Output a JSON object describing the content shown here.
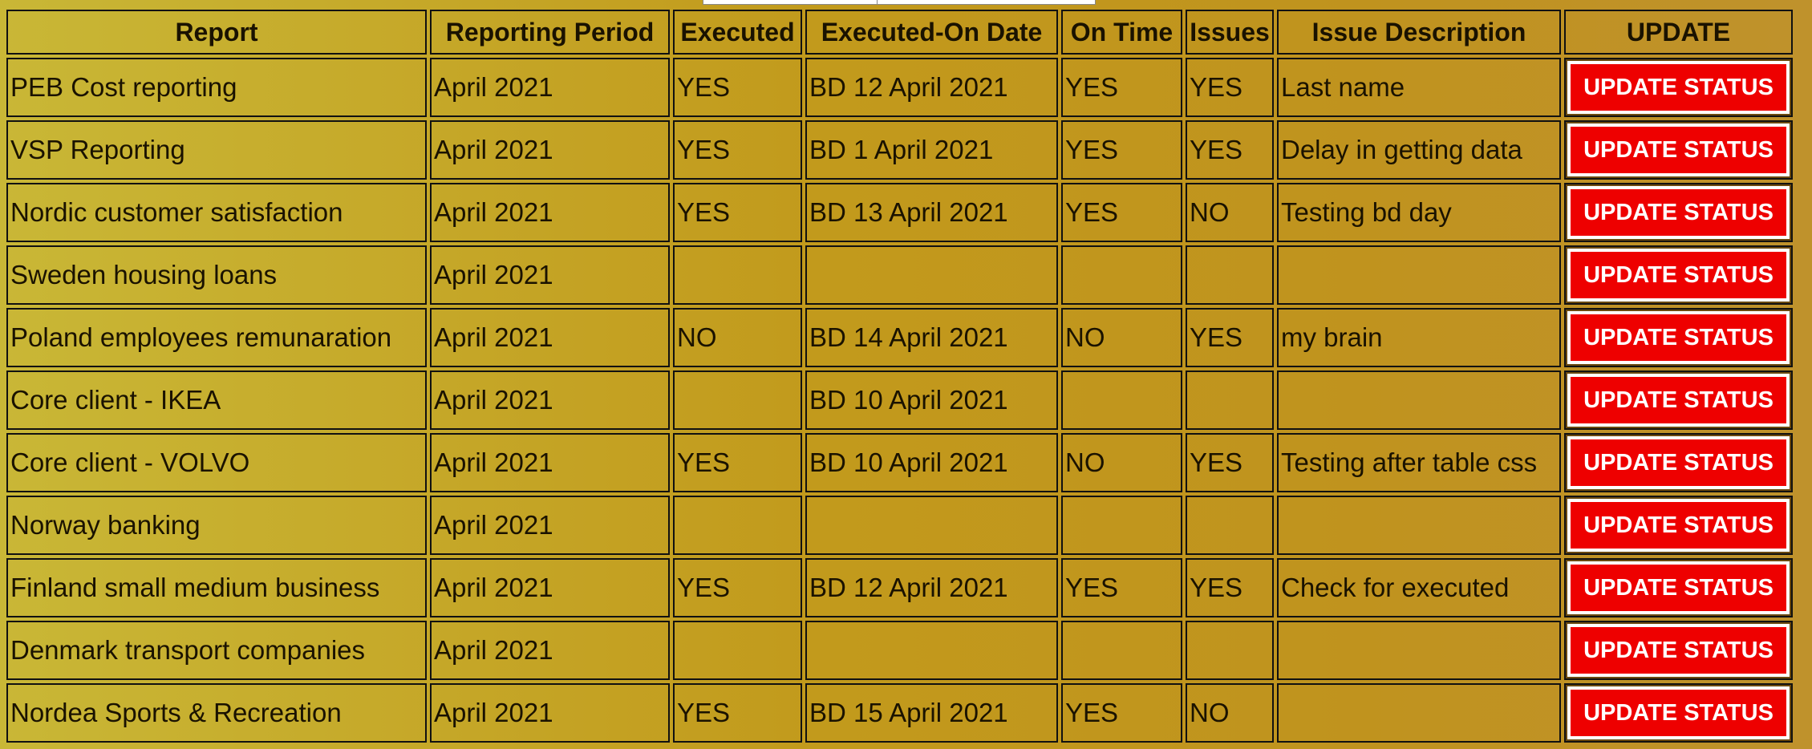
{
  "table": {
    "header": [
      "Report",
      "Reporting Period",
      "Executed",
      "Executed-On Date",
      "On Time",
      "Issues",
      "Issue Description",
      "UPDATE"
    ],
    "rows": [
      [
        "PEB Cost reporting",
        "April 2021",
        "YES",
        "BD 12 April 2021",
        "YES",
        "YES",
        "Last name",
        "UPDATE STATUS"
      ],
      [
        "VSP Reporting",
        "April 2021",
        "YES",
        "BD 1 April 2021",
        "YES",
        "YES",
        "Delay in getting data",
        "UPDATE STATUS"
      ],
      [
        "Nordic customer satisfaction",
        "April 2021",
        "YES",
        "BD 13 April 2021",
        "YES",
        "NO",
        "Testing bd day",
        "UPDATE STATUS"
      ],
      [
        "Sweden housing loans",
        "April 2021",
        null,
        null,
        null,
        null,
        null,
        "UPDATE STATUS"
      ],
      [
        "Poland employees remunaration",
        "April 2021",
        "NO",
        "BD 14 April 2021",
        "NO",
        "YES",
        "my brain",
        "UPDATE STATUS"
      ],
      [
        "Core client - IKEA",
        "April 2021",
        null,
        "BD 10 April 2021",
        null,
        null,
        null,
        "UPDATE STATUS"
      ],
      [
        "Core client - VOLVO",
        "April 2021",
        "YES",
        "BD 10 April 2021",
        "NO",
        "YES",
        "Testing after table css",
        "UPDATE STATUS"
      ],
      [
        "Norway banking",
        "April 2021",
        null,
        null,
        null,
        null,
        null,
        "UPDATE STATUS"
      ],
      [
        "Finland small medium business",
        "April 2021",
        "YES",
        "BD 12 April 2021",
        "YES",
        "YES",
        "Check for executed",
        "UPDATE STATUS"
      ],
      [
        "Denmark transport companies",
        "April 2021",
        null,
        null,
        null,
        null,
        null,
        "UPDATE STATUS"
      ],
      [
        "Nordea Sports & Recreation",
        "April 2021",
        "YES",
        "BD 15 April 2021",
        "YES",
        "NO",
        null,
        "UPDATE STATUS"
      ]
    ]
  }
}
